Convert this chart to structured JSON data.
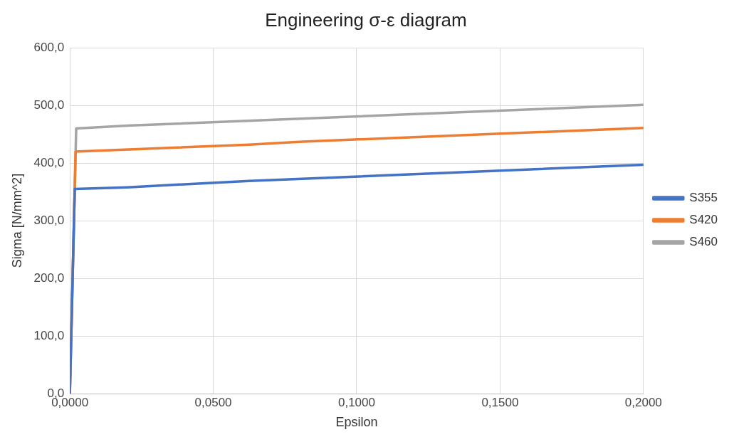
{
  "chart_data": {
    "type": "line",
    "title": "Engineering σ-ε diagram",
    "xlabel": "Epsilon",
    "ylabel": "Sigma [N/mm^2]",
    "xlim": [
      0,
      0.2
    ],
    "ylim": [
      0,
      600
    ],
    "xticks": [
      {
        "value": 0,
        "label": "0,0000"
      },
      {
        "value": 0.05,
        "label": "0,0500"
      },
      {
        "value": 0.1,
        "label": "0,1000"
      },
      {
        "value": 0.15,
        "label": "0,1500"
      },
      {
        "value": 0.2,
        "label": "0,2000"
      }
    ],
    "yticks": [
      {
        "value": 0,
        "label": "0,0"
      },
      {
        "value": 100,
        "label": "100,0"
      },
      {
        "value": 200,
        "label": "200,0"
      },
      {
        "value": 300,
        "label": "300,0"
      },
      {
        "value": 400,
        "label": "400,0"
      },
      {
        "value": 500,
        "label": "500,0"
      },
      {
        "value": 600,
        "label": "600,0"
      }
    ],
    "grid": true,
    "legend": "right",
    "marker": "none",
    "line_style": "solid",
    "series": [
      {
        "name": "S355",
        "color": "#4472c4",
        "x": [
          0,
          0.0017,
          0.02,
          0.0625,
          0.2
        ],
        "values": [
          0,
          355,
          358,
          369,
          397
        ]
      },
      {
        "name": "S420",
        "color": "#ed7d31",
        "x": [
          0,
          0.002,
          0.0625,
          0.08,
          0.2
        ],
        "values": [
          0,
          420,
          432,
          437,
          461
        ]
      },
      {
        "name": "S460",
        "color": "#a5a5a5",
        "x": [
          0,
          0.0022,
          0.02,
          0.2
        ],
        "values": [
          0,
          460,
          465,
          501
        ]
      }
    ]
  }
}
